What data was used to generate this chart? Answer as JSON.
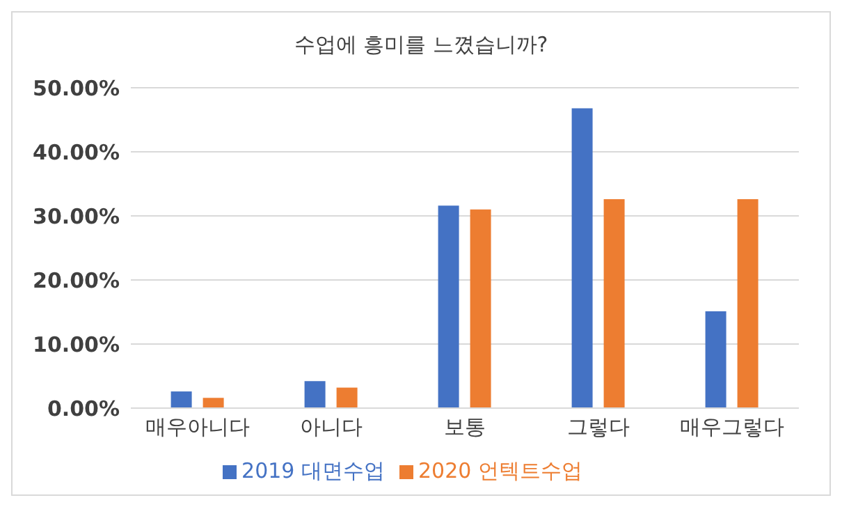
{
  "chart_data": {
    "type": "bar",
    "title": "수업에 흥미를 느꼈습니까?",
    "categories": [
      "매우아니다",
      "아니다",
      "보통",
      "그렇다",
      "매우그렇다"
    ],
    "series": [
      {
        "name": "2019 대면수업",
        "color": "#4472c4",
        "values": [
          2.6,
          4.2,
          31.6,
          46.8,
          15.1
        ]
      },
      {
        "name": "2020 언텍트수업",
        "color": "#ed7d31",
        "values": [
          1.6,
          3.2,
          31.0,
          32.6,
          32.6
        ]
      }
    ],
    "ylim": [
      0,
      50
    ],
    "yticks": [
      {
        "value": 0,
        "label": "0.00%"
      },
      {
        "value": 10,
        "label": "10.00%"
      },
      {
        "value": 20,
        "label": "20.00%"
      },
      {
        "value": 30,
        "label": "30.00%"
      },
      {
        "value": 40,
        "label": "40.00%"
      },
      {
        "value": 50,
        "label": "50.00%"
      }
    ],
    "grid": "y",
    "legend": "bottom"
  }
}
